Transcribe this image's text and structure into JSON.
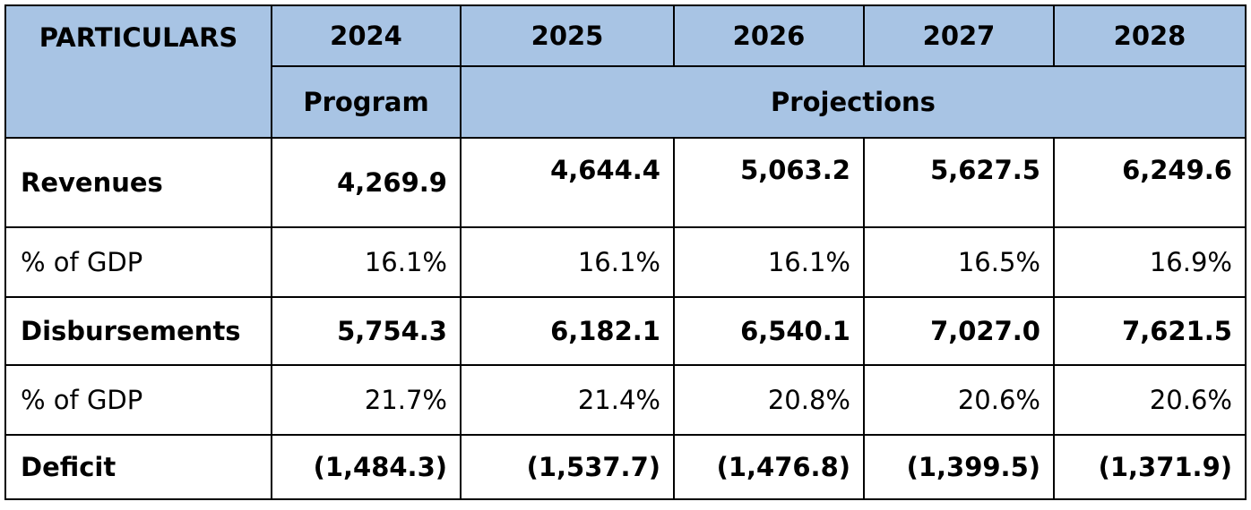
{
  "table": {
    "header": {
      "particulars": "PARTICULARS",
      "years": [
        "2024",
        "2025",
        "2026",
        "2027",
        "2028"
      ],
      "program": "Program",
      "projections": "Projections"
    },
    "rows": [
      {
        "label": "Revenues",
        "values": [
          "4,269.9",
          "4,644.4",
          "5,063.2",
          "5,627.5",
          "6,249.6"
        ]
      },
      {
        "label": "% of GDP",
        "values": [
          "16.1%",
          "16.1%",
          "16.1%",
          "16.5%",
          "16.9%"
        ]
      },
      {
        "label": "Disbursements",
        "values": [
          "5,754.3",
          "6,182.1",
          "6,540.1",
          "7,027.0",
          "7,621.5"
        ]
      },
      {
        "label": "% of GDP",
        "values": [
          "21.7%",
          "21.4%",
          "20.8%",
          "20.6%",
          "20.6%"
        ]
      },
      {
        "label": "Deficit",
        "values": [
          "(1,484.3)",
          "(1,537.7)",
          "(1,476.8)",
          "(1,399.5)",
          "(1,371.9)"
        ]
      }
    ],
    "colors": {
      "header_bg": "#a8c4e4",
      "border": "#000000"
    }
  }
}
